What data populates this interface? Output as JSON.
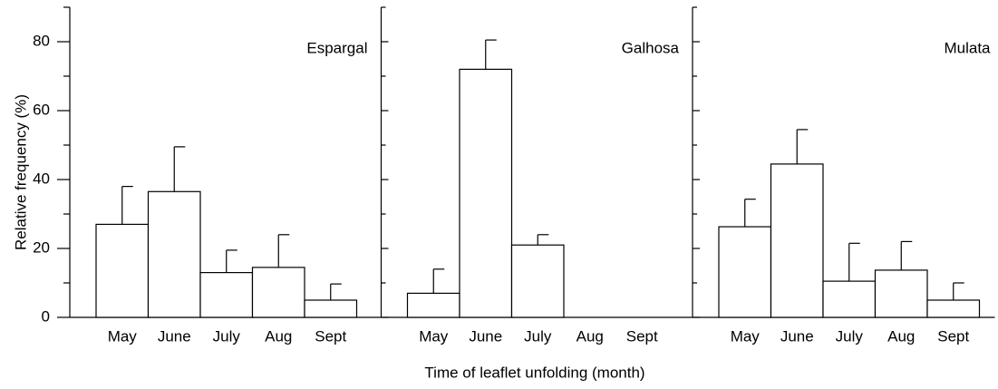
{
  "chart_data": {
    "type": "bar",
    "ylabel": "Relative frequency (%)",
    "xlabel": "Time of leaflet unfolding (month)",
    "ylim": [
      0,
      90
    ],
    "yticks": [
      0,
      20,
      40,
      60,
      80
    ],
    "yminorticks": [
      10,
      30,
      50,
      70,
      90
    ],
    "color": "#ffffff",
    "categories": [
      "May",
      "June",
      "July",
      "Aug",
      "Sept"
    ],
    "panels": [
      {
        "name": "Espargal",
        "values": [
          27,
          36.5,
          13,
          14.5,
          5
        ],
        "errors": [
          11,
          13,
          6.5,
          9.5,
          4.7
        ]
      },
      {
        "name": "Galhosa",
        "values": [
          7,
          72,
          21,
          0,
          0
        ],
        "errors": [
          7,
          8.5,
          3,
          null,
          null
        ]
      },
      {
        "name": "Mulata",
        "values": [
          26.3,
          44.5,
          10.5,
          13.7,
          5
        ],
        "errors": [
          8,
          10,
          11,
          8.3,
          5
        ]
      }
    ]
  }
}
